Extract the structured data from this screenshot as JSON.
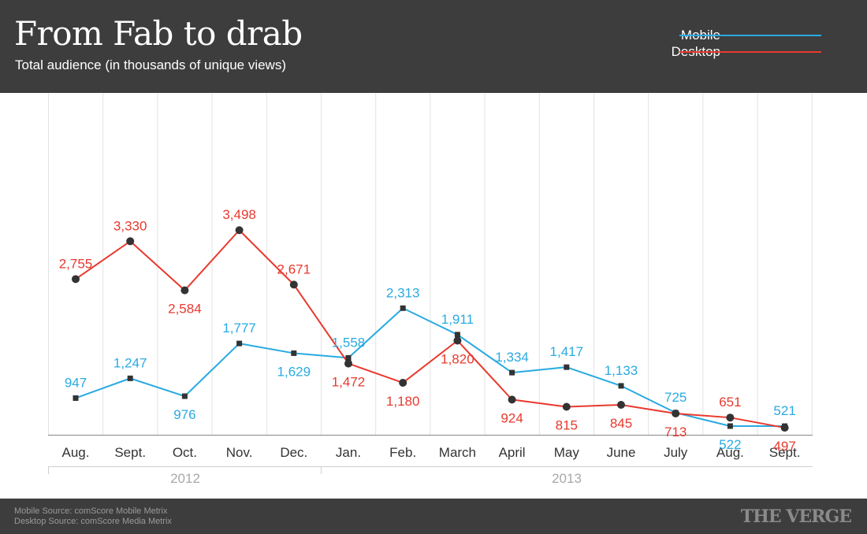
{
  "header": {
    "title": "From Fab to drab",
    "subtitle": "Total audience (in thousands of unique views)"
  },
  "legend": [
    {
      "name": "Mobile",
      "color": "#29aae1"
    },
    {
      "name": "Desktop",
      "color": "#e8392e"
    }
  ],
  "chart_data": {
    "type": "line",
    "title": "From Fab to drab",
    "subtitle": "Total audience (in thousands of unique views)",
    "categories": [
      "Aug.",
      "Sept.",
      "Oct.",
      "Nov.",
      "Dec.",
      "Jan.",
      "Feb.",
      "March",
      "April",
      "May",
      "June",
      "July",
      "Aug.",
      "Sept."
    ],
    "year_groups": [
      {
        "label": "2012",
        "start": 0,
        "end": 4
      },
      {
        "label": "2013",
        "start": 5,
        "end": 13
      }
    ],
    "series": [
      {
        "name": "Mobile",
        "color": "#29aae1",
        "marker": "square",
        "values": [
          947,
          1247,
          976,
          1777,
          1629,
          1558,
          2313,
          1911,
          1334,
          1417,
          1133,
          725,
          522,
          521
        ],
        "labels": [
          "947",
          "1,247",
          "976",
          "1,777",
          "1,629",
          "1,558",
          "2,313",
          "1,911",
          "1,334",
          "1,417",
          "1,133",
          "725",
          "522",
          "521"
        ]
      },
      {
        "name": "Desktop",
        "color": "#e8392e",
        "marker": "circle",
        "values": [
          2755,
          3330,
          2584,
          3498,
          2671,
          1472,
          1180,
          1820,
          924,
          815,
          845,
          713,
          651,
          497
        ],
        "labels": [
          "2,755",
          "3,330",
          "2,584",
          "3,498",
          "2,671",
          "1,472",
          "1,180",
          "1,820",
          "924",
          "815",
          "845",
          "713",
          "651",
          "497"
        ]
      }
    ],
    "ylim": [
      0,
      4000
    ],
    "grid": "vertical",
    "legend_position": "top-right"
  },
  "footer": {
    "source_mobile": "Mobile Source: comScore Mobile Metrix",
    "source_desktop": "Desktop Source: comScore Media Metrix",
    "brand": "THE VERGE"
  }
}
